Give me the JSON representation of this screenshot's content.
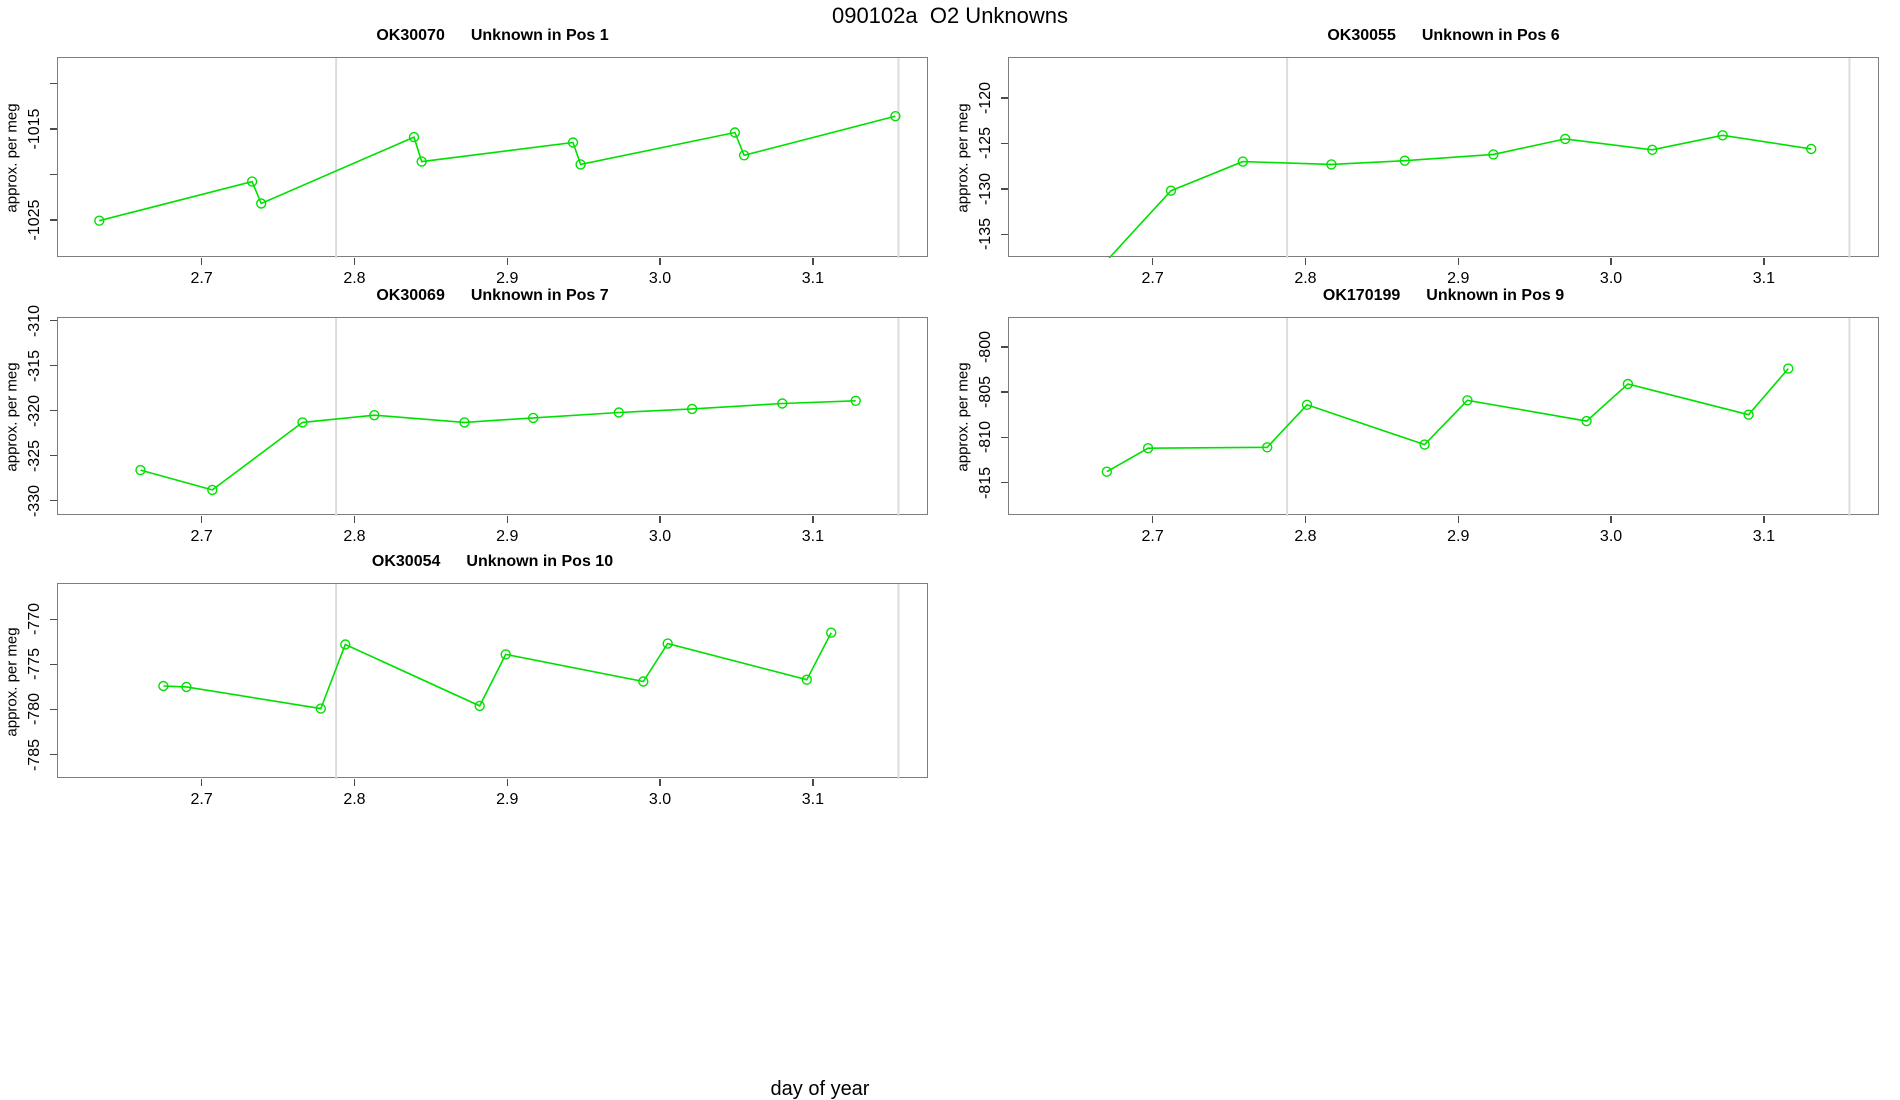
{
  "page_title": "090102a  O2 Unknowns",
  "xlabel": "day of year",
  "ylabel": "approx. per meg",
  "x_axis": {
    "xlim": [
      2.606,
      3.176
    ],
    "ticks": [
      2.7,
      2.8,
      2.9,
      3.0,
      3.1
    ],
    "tick_labels": [
      "2.7",
      "2.8",
      "2.9",
      "3.0",
      "3.1"
    ]
  },
  "ref_lines": {
    "x_values": [
      2.788,
      3.156
    ],
    "color": "#dcdcdc"
  },
  "series_style": {
    "color": "#00e000",
    "marker": "open-circle",
    "line_width": 1.6,
    "marker_radius": 4.5
  },
  "chart_data": [
    {
      "type": "line",
      "sample": "OK30070",
      "pos_label": "Unknown in Pos 1",
      "ylim": [
        -1029.2,
        -1007.2
      ],
      "ytick_values": [
        -1010,
        -1015,
        -1020,
        -1025
      ],
      "ytick_labels": [
        "",
        "-1015",
        "",
        "-1025"
      ],
      "points": [
        [
          2.633,
          -1025.1
        ],
        [
          2.733,
          -1020.8
        ],
        [
          2.739,
          -1023.2
        ],
        [
          2.839,
          -1015.9
        ],
        [
          2.844,
          -1018.6
        ],
        [
          2.943,
          -1016.5
        ],
        [
          2.948,
          -1018.9
        ],
        [
          3.049,
          -1015.4
        ],
        [
          3.055,
          -1017.9
        ],
        [
          3.154,
          -1013.6
        ]
      ]
    },
    {
      "type": "line",
      "sample": "OK30055",
      "pos_label": "Unknown in Pos 6",
      "ylim": [
        -137.6,
        -115.6
      ],
      "ytick_values": [
        -120,
        -125,
        -130,
        -135
      ],
      "ytick_labels": [
        "-120",
        "-125",
        "-130",
        "-135"
      ],
      "points": [
        [
          2.665,
          -138.8
        ],
        [
          2.712,
          -130.2
        ],
        [
          2.759,
          -127.0
        ],
        [
          2.817,
          -127.3
        ],
        [
          2.865,
          -126.9
        ],
        [
          2.923,
          -126.2
        ],
        [
          2.97,
          -124.5
        ],
        [
          3.027,
          -125.7
        ],
        [
          3.073,
          -124.1
        ],
        [
          3.131,
          -125.6
        ]
      ]
    },
    {
      "type": "line",
      "sample": "OK30069",
      "pos_label": "Unknown in Pos 7",
      "ylim": [
        -331.7,
        -309.7
      ],
      "ytick_values": [
        -310,
        -315,
        -320,
        -325,
        -330
      ],
      "ytick_labels": [
        "-310",
        "-315",
        "-320",
        "-325",
        "-330"
      ],
      "points": [
        [
          2.66,
          -326.6
        ],
        [
          2.707,
          -328.8
        ],
        [
          2.766,
          -321.3
        ],
        [
          2.813,
          -320.5
        ],
        [
          2.872,
          -321.3
        ],
        [
          2.917,
          -320.8
        ],
        [
          2.973,
          -320.2
        ],
        [
          3.021,
          -319.8
        ],
        [
          3.08,
          -319.2
        ],
        [
          3.128,
          -318.9
        ]
      ]
    },
    {
      "type": "line",
      "sample": "OK170199",
      "pos_label": "Unknown in Pos 9",
      "ylim": [
        -818.7,
        -796.8
      ],
      "ytick_values": [
        -800,
        -805,
        -810,
        -815
      ],
      "ytick_labels": [
        "-800",
        "-805",
        "-810",
        "-815"
      ],
      "points": [
        [
          2.67,
          -813.8
        ],
        [
          2.697,
          -811.2
        ],
        [
          2.775,
          -811.1
        ],
        [
          2.801,
          -806.4
        ],
        [
          2.878,
          -810.8
        ],
        [
          2.906,
          -805.9
        ],
        [
          2.984,
          -808.2
        ],
        [
          3.011,
          -804.1
        ],
        [
          3.09,
          -807.5
        ],
        [
          3.116,
          -802.4
        ]
      ]
    },
    {
      "type": "line",
      "sample": "OK30054",
      "pos_label": "Unknown in Pos 10",
      "ylim": [
        -787.7,
        -766.1
      ],
      "ytick_values": [
        -770,
        -775,
        -780,
        -785
      ],
      "ytick_labels": [
        "-770",
        "-775",
        "-780",
        "-785"
      ],
      "points": [
        [
          2.675,
          -777.4
        ],
        [
          2.69,
          -777.5
        ],
        [
          2.778,
          -779.9
        ],
        [
          2.794,
          -772.8
        ],
        [
          2.882,
          -779.6
        ],
        [
          2.899,
          -773.9
        ],
        [
          2.989,
          -776.9
        ],
        [
          3.005,
          -772.7
        ],
        [
          3.096,
          -776.7
        ],
        [
          3.112,
          -771.5
        ]
      ]
    }
  ]
}
